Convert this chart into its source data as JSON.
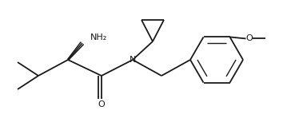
{
  "bg_color": "#ffffff",
  "line_color": "#1a1a1a",
  "line_width": 1.3,
  "font_size": 7.8,
  "figsize": [
    3.54,
    1.48
  ],
  "dpi": 100,
  "NH2": "NH₂",
  "N": "N",
  "O": "O"
}
